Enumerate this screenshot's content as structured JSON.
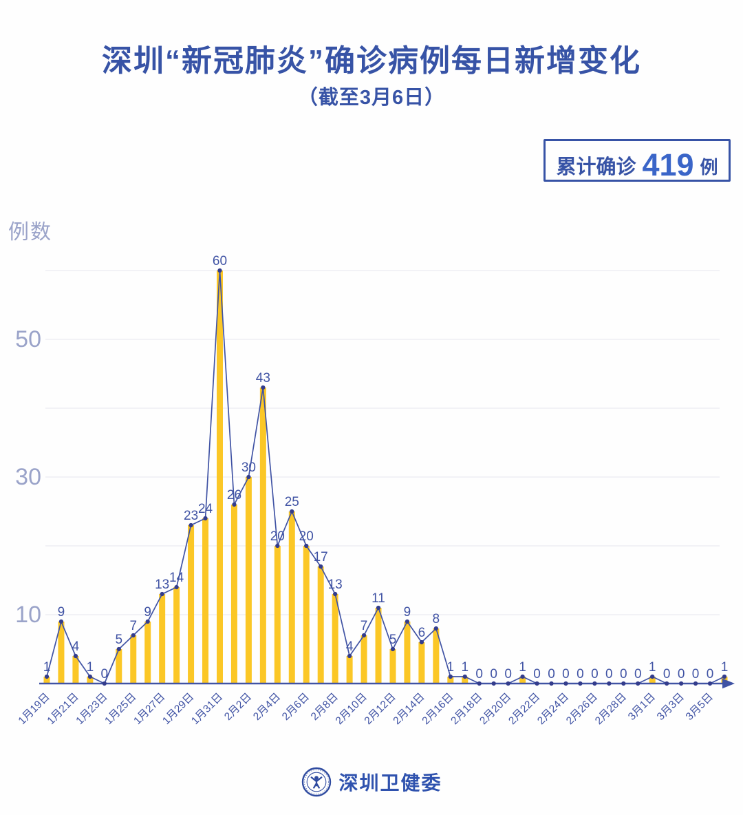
{
  "header": {
    "title": "深圳“新冠肺炎”确诊病例每日新增变化",
    "subtitle": "（截至3月6日）"
  },
  "badge": {
    "label": "累计确诊",
    "value": "419",
    "unit": "例"
  },
  "footer": {
    "org_name": "深圳卫健委",
    "logo": "shenzhen-health-commission-emblem"
  },
  "colors": {
    "title_blue": "#3753a6",
    "axis_indigo": "#4053a4",
    "dot_navy": "#333c8c",
    "bar_yellow": "#fbc726",
    "grid_gray": "#ebebf1",
    "y_tick_light": "#9aa3c9",
    "badge_value_blue": "#3a65c8"
  },
  "chart_data": {
    "type": "bar",
    "overlay": "line",
    "title": "深圳“新冠肺炎”确诊病例每日新增变化（截至3月6日）",
    "ylabel": "例数",
    "ylim": [
      0,
      63
    ],
    "grid": "on",
    "grid_values": [
      10,
      20,
      30,
      40,
      50,
      60
    ],
    "y_tick_labels": [
      50,
      30,
      10
    ],
    "x_label_every": 2,
    "categories": [
      "1月19日",
      "1月20日",
      "1月21日",
      "1月22日",
      "1月23日",
      "1月24日",
      "1月25日",
      "1月26日",
      "1月27日",
      "1月28日",
      "1月29日",
      "1月30日",
      "1月31日",
      "2月1日",
      "2月2日",
      "2月3日",
      "2月4日",
      "2月5日",
      "2月6日",
      "2月7日",
      "2月8日",
      "2月9日",
      "2月10日",
      "2月11日",
      "2月12日",
      "2月13日",
      "2月14日",
      "2月15日",
      "2月16日",
      "2月17日",
      "2月18日",
      "2月19日",
      "2月20日",
      "2月21日",
      "2月22日",
      "2月23日",
      "2月24日",
      "2月25日",
      "2月26日",
      "2月27日",
      "2月28日",
      "2月29日",
      "3月1日",
      "3月2日",
      "3月3日",
      "3月4日",
      "3月5日",
      "3月6日"
    ],
    "values": [
      1,
      9,
      4,
      1,
      0,
      5,
      7,
      9,
      13,
      14,
      23,
      24,
      60,
      26,
      30,
      43,
      20,
      25,
      20,
      17,
      13,
      4,
      7,
      11,
      5,
      9,
      6,
      8,
      1,
      1,
      0,
      0,
      0,
      1,
      0,
      0,
      0,
      0,
      0,
      0,
      0,
      0,
      1,
      0,
      0,
      0,
      0,
      1
    ],
    "cumulative_total": 419
  }
}
